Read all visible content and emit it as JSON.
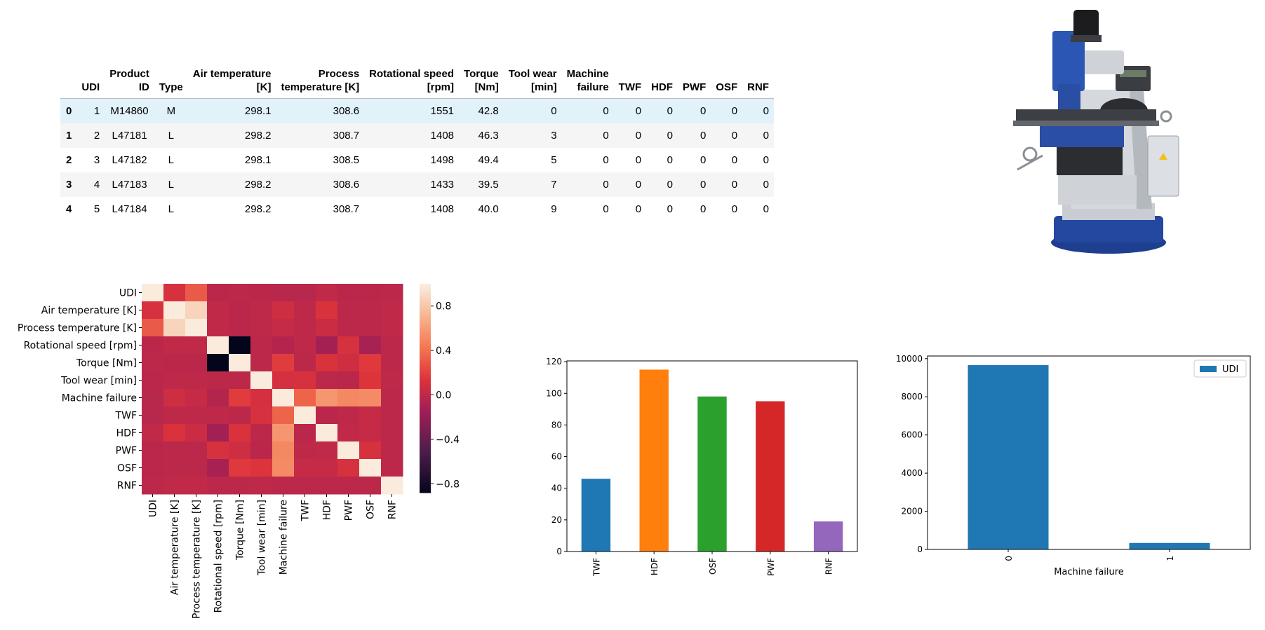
{
  "table": {
    "columns": [
      "",
      "UDI",
      "Product\nID",
      "Type",
      "Air temperature\n[K]",
      "Process\ntemperature [K]",
      "Rotational speed\n[rpm]",
      "Torque\n[Nm]",
      "Tool wear\n[min]",
      "Machine\nfailure",
      "TWF",
      "HDF",
      "PWF",
      "OSF",
      "RNF"
    ],
    "rows": [
      [
        "0",
        "1",
        "M14860",
        "M",
        "298.1",
        "308.6",
        "1551",
        "42.8",
        "0",
        "0",
        "0",
        "0",
        "0",
        "0",
        "0"
      ],
      [
        "1",
        "2",
        "L47181",
        "L",
        "298.2",
        "308.7",
        "1408",
        "46.3",
        "3",
        "0",
        "0",
        "0",
        "0",
        "0",
        "0"
      ],
      [
        "2",
        "3",
        "L47182",
        "L",
        "298.1",
        "308.5",
        "1498",
        "49.4",
        "5",
        "0",
        "0",
        "0",
        "0",
        "0",
        "0"
      ],
      [
        "3",
        "4",
        "L47183",
        "L",
        "298.2",
        "308.6",
        "1433",
        "39.5",
        "7",
        "0",
        "0",
        "0",
        "0",
        "0",
        "0"
      ],
      [
        "4",
        "5",
        "L47184",
        "L",
        "298.2",
        "308.7",
        "1408",
        "40.0",
        "9",
        "0",
        "0",
        "0",
        "0",
        "0",
        "0"
      ]
    ]
  },
  "machine_image": {
    "description": "milling machine",
    "icon": "milling-machine-icon"
  },
  "chart_data": [
    {
      "type": "heatmap",
      "labels": [
        "UDI",
        "Air temperature [K]",
        "Process temperature [K]",
        "Rotational speed [rpm]",
        "Torque [Nm]",
        "Tool wear [min]",
        "Machine failure",
        "TWF",
        "HDF",
        "PWF",
        "OSF",
        "RNF"
      ],
      "matrix": [
        [
          1.0,
          0.12,
          0.32,
          -0.01,
          0.0,
          -0.01,
          -0.02,
          -0.02,
          0.02,
          -0.01,
          -0.01,
          0.0
        ],
        [
          0.12,
          1.0,
          0.88,
          0.02,
          -0.01,
          0.01,
          0.08,
          0.01,
          0.14,
          0.0,
          0.0,
          0.02
        ],
        [
          0.32,
          0.88,
          1.0,
          0.02,
          -0.01,
          0.01,
          0.04,
          0.01,
          0.06,
          0.0,
          0.0,
          0.02
        ],
        [
          -0.01,
          0.02,
          0.02,
          1.0,
          -0.88,
          0.0,
          -0.04,
          0.01,
          -0.12,
          0.12,
          -0.1,
          0.0
        ],
        [
          0.0,
          -0.01,
          -0.01,
          -0.88,
          1.0,
          -0.0,
          0.19,
          -0.0,
          0.14,
          0.08,
          0.18,
          0.0
        ],
        [
          -0.01,
          0.01,
          0.01,
          0.0,
          -0.0,
          1.0,
          0.11,
          0.12,
          -0.0,
          -0.01,
          0.16,
          0.01
        ],
        [
          -0.02,
          0.08,
          0.04,
          -0.04,
          0.19,
          0.11,
          1.0,
          0.36,
          0.58,
          0.52,
          0.53,
          0.0
        ],
        [
          -0.02,
          0.01,
          0.01,
          0.01,
          -0.0,
          0.12,
          0.36,
          1.0,
          -0.01,
          0.01,
          0.04,
          0.0
        ],
        [
          0.02,
          0.14,
          0.06,
          -0.12,
          0.14,
          -0.0,
          0.58,
          -0.01,
          1.0,
          0.02,
          0.04,
          0.0
        ],
        [
          -0.01,
          0.0,
          0.0,
          0.12,
          0.08,
          -0.01,
          0.52,
          0.01,
          0.02,
          1.0,
          0.12,
          0.0
        ],
        [
          -0.01,
          0.0,
          0.0,
          -0.1,
          0.18,
          0.16,
          0.53,
          0.04,
          0.04,
          0.12,
          1.0,
          0.0
        ],
        [
          0.0,
          0.02,
          0.02,
          0.0,
          0.0,
          0.01,
          0.0,
          0.0,
          0.0,
          0.0,
          0.0,
          1.0
        ]
      ],
      "colorbar_ticks": [
        "0.8",
        "0.4",
        "0.0",
        "−0.4",
        "−0.8"
      ],
      "colorbar_tick_values": [
        0.8,
        0.4,
        0.0,
        -0.4,
        -0.8
      ],
      "vmin": -0.88,
      "vmax": 1.0
    },
    {
      "type": "bar",
      "categories": [
        "TWF",
        "HDF",
        "OSF",
        "PWF",
        "RNF"
      ],
      "values": [
        46,
        115,
        98,
        95,
        19
      ],
      "colors": [
        "#1f77b4",
        "#ff7f0e",
        "#2ca02c",
        "#d62728",
        "#9467bd"
      ],
      "yticks": [
        "0",
        "20",
        "40",
        "60",
        "80",
        "100",
        "120"
      ],
      "ytick_values": [
        0,
        20,
        40,
        60,
        80,
        100,
        120
      ],
      "ylim": [
        0,
        120.5
      ]
    },
    {
      "type": "bar",
      "categories": [
        "0",
        "1"
      ],
      "values": [
        9661,
        339
      ],
      "color": "#1f77b4",
      "xlabel": "Machine failure",
      "legend": "UDI",
      "legend_position": "upper right",
      "yticks": [
        "0",
        "2000",
        "4000",
        "6000",
        "8000",
        "10000"
      ],
      "ytick_values": [
        0,
        2000,
        4000,
        6000,
        8000,
        10000
      ],
      "ylim": [
        0,
        10140
      ]
    }
  ]
}
